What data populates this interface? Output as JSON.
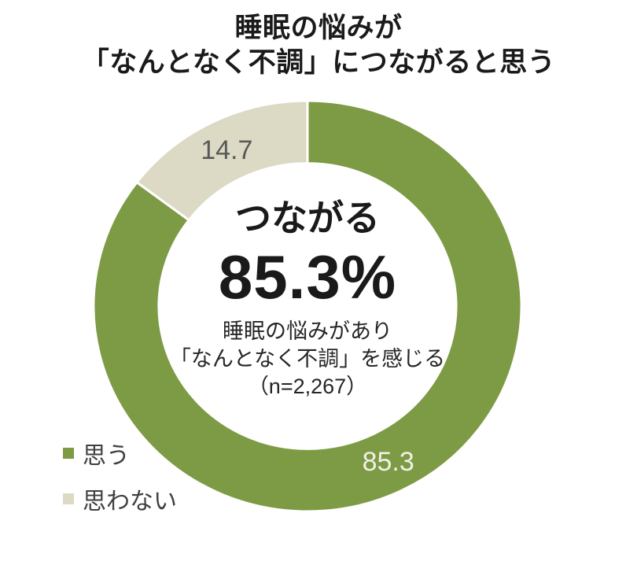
{
  "title": {
    "line1": "睡眠の悩みが",
    "line2": "「なんとなく不調」につながると思う"
  },
  "center": {
    "headline": "つながる",
    "value": "85.3%",
    "sub1": "睡眠の悩みがあり",
    "sub2": "「なんとなく不調」を感じる",
    "sub3": "（n=2,267）"
  },
  "legend": {
    "items": [
      {
        "label": "思う",
        "color": "#7D9B44"
      },
      {
        "label": "思わない",
        "color": "#DCDAC4"
      }
    ]
  },
  "chart_data": {
    "type": "pie",
    "subtype": "donut",
    "title": "睡眠の悩みが「なんとなく不調」につながると思う",
    "categories": [
      "思う",
      "思わない"
    ],
    "values": [
      85.3,
      14.7
    ],
    "unit": "%",
    "sample_size_label": "n=2,267",
    "colors": [
      "#7D9B44",
      "#DCDAC4"
    ],
    "data_labels": [
      "85.3",
      "14.7"
    ],
    "label_colors": [
      "#F0F0E7",
      "#595959"
    ],
    "donut_hole_ratio": 0.695,
    "start_angle_deg": 0,
    "direction": "clockwise",
    "legend_position": "bottom-left",
    "center_text": "つながる 85.3% 睡眠の悩みがあり「なんとなく不調」を感じる（n=2,267）"
  }
}
